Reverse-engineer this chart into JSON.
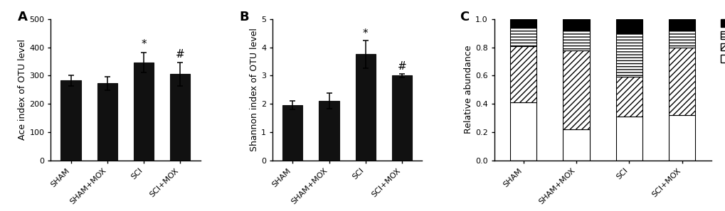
{
  "panel_A": {
    "categories": [
      "SHAM",
      "SHAM+MOX",
      "SCI",
      "SCI+MOX"
    ],
    "values": [
      282,
      272,
      347,
      305
    ],
    "errors": [
      20,
      25,
      35,
      42
    ],
    "ylabel": "Ace index of OTU level",
    "ylim": [
      0,
      500
    ],
    "yticks": [
      0,
      100,
      200,
      300,
      400,
      500
    ],
    "sig_labels": [
      "",
      "",
      "*",
      "#"
    ],
    "label": "A"
  },
  "panel_B": {
    "categories": [
      "SHAM",
      "SHAM+MOX",
      "SCI",
      "SCI+MOX"
    ],
    "values": [
      1.95,
      2.1,
      3.75,
      3.0
    ],
    "errors": [
      0.15,
      0.28,
      0.48,
      0.07
    ],
    "ylabel": "Shannon index of OTU level",
    "ylim": [
      0,
      5
    ],
    "yticks": [
      0,
      1,
      2,
      3,
      4,
      5
    ],
    "sig_labels": [
      "",
      "",
      "*",
      "#"
    ],
    "label": "B"
  },
  "panel_C": {
    "categories": [
      "SHAM",
      "SHAM+MOX",
      "SCI",
      "SCI+MOX"
    ],
    "lactobacillales": [
      0.41,
      0.22,
      0.31,
      0.32
    ],
    "clostridiales": [
      0.4,
      0.56,
      0.28,
      0.48
    ],
    "bifidobacteriales": [
      0.13,
      0.14,
      0.31,
      0.12
    ],
    "others": [
      0.06,
      0.08,
      0.1,
      0.08
    ],
    "ylabel": "Relative abundance",
    "ylim": [
      0,
      1.0
    ],
    "yticks": [
      0.0,
      0.2,
      0.4,
      0.6,
      0.8,
      1.0
    ],
    "label": "C"
  },
  "bar_color": "#111111",
  "bar_width": 0.55,
  "font_size": 9,
  "tick_fontsize": 8,
  "background_color": "#ffffff"
}
